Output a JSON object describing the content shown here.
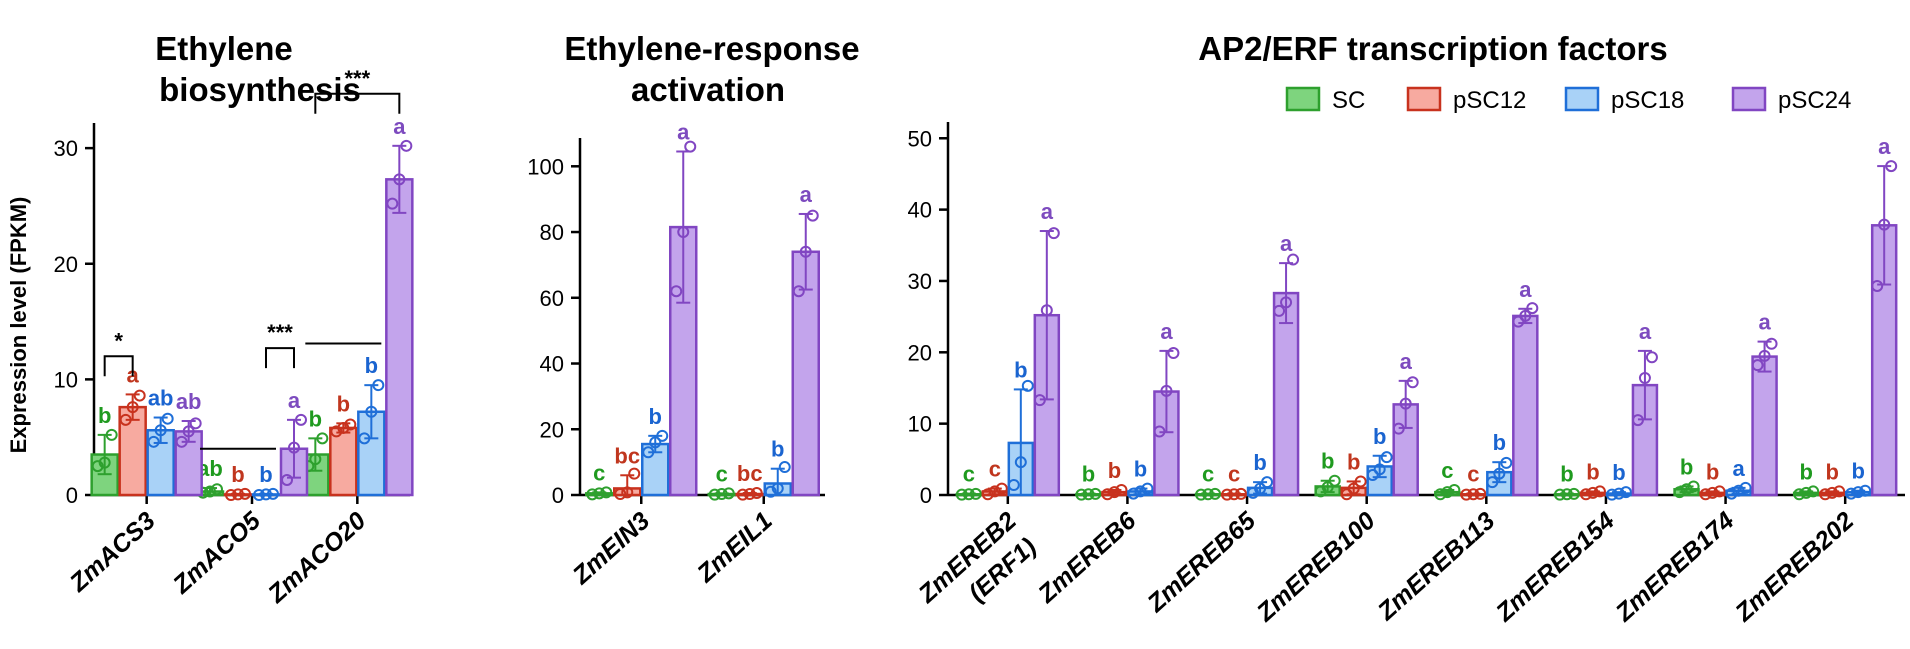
{
  "colors": {
    "SC": {
      "fill": "#7ed47e",
      "stroke": "#2ea02e",
      "text": "#1f9a1f"
    },
    "pSC12": {
      "fill": "#f7aaa0",
      "stroke": "#c8321e",
      "text": "#c0361e"
    },
    "pSC18": {
      "fill": "#a9d2f7",
      "stroke": "#1f6fd8",
      "text": "#1a64d0"
    },
    "pSC24": {
      "fill": "#c3a4ec",
      "stroke": "#8146c2",
      "text": "#7d4bbf"
    }
  },
  "legend": [
    "SC",
    "pSC12",
    "pSC18",
    "pSC24"
  ],
  "shared_ylabel": "Expression level (FPKM)",
  "chart_data": [
    {
      "type": "bar",
      "title": [
        "Ethylene",
        "biosynthesis"
      ],
      "ylim": [
        0,
        32
      ],
      "yticks": [
        "0",
        "10",
        "20",
        "30"
      ],
      "categories": [
        "ZmACS3",
        "ZmACO5",
        "ZmACO20"
      ],
      "series": [
        {
          "name": "SC",
          "values": [
            3.5,
            0.3,
            3.5
          ],
          "errors": [
            1.7,
            0.3,
            1.4
          ],
          "letters": [
            "b",
            "ab",
            "b"
          ],
          "points": [
            [
              2.5,
              2.8,
              5.2
            ],
            [
              0.2,
              0.3,
              0.5
            ],
            [
              2.5,
              3.1,
              4.9
            ]
          ]
        },
        {
          "name": "pSC12",
          "values": [
            7.6,
            0.05,
            5.8
          ],
          "errors": [
            1.1,
            0.05,
            0.4
          ],
          "letters": [
            "a",
            "b",
            "b"
          ],
          "points": [
            [
              6.5,
              7.6,
              8.6
            ],
            [
              0,
              0.05,
              0.1
            ],
            [
              5.5,
              5.8,
              6.1
            ]
          ]
        },
        {
          "name": "pSC18",
          "values": [
            5.6,
            0.05,
            7.2
          ],
          "errors": [
            1.1,
            0.05,
            2.3
          ],
          "letters": [
            "ab",
            "b",
            "b"
          ],
          "points": [
            [
              4.6,
              5.6,
              6.6
            ],
            [
              0,
              0.05,
              0.1
            ],
            [
              4.9,
              7.2,
              9.5
            ]
          ]
        },
        {
          "name": "pSC24",
          "values": [
            5.5,
            4.0,
            27.3
          ],
          "errors": [
            0.9,
            2.5,
            2.9
          ],
          "letters": [
            "ab",
            "a",
            "a"
          ],
          "points": [
            [
              4.6,
              5.5,
              6.2
            ],
            [
              1.3,
              4.1,
              6.5
            ],
            [
              25.2,
              27.3,
              30.2
            ]
          ]
        }
      ],
      "brackets": [
        {
          "cat": 0,
          "from": "SC",
          "to": "pSC12",
          "y": 12.0,
          "stars": "*"
        },
        {
          "cat": 1,
          "from": "pSC18",
          "to": "pSC24",
          "y": 12.7,
          "stars": "***"
        },
        {
          "cat": 1,
          "from": "SC",
          "to": "pSC18",
          "y": 4.0,
          "stars": ""
        },
        {
          "cat": 2,
          "from": "SC",
          "to": "pSC18",
          "y": 13.1,
          "stars": ""
        },
        {
          "cat": 2,
          "from": "SC",
          "to": "pSC24",
          "y": 34.7,
          "stars": "***"
        }
      ]
    },
    {
      "type": "bar",
      "title": [
        "Ethylene-response",
        "activation"
      ],
      "ylim": [
        0,
        108
      ],
      "yticks": [
        "0",
        "20",
        "40",
        "60",
        "80",
        "100"
      ],
      "categories": [
        "ZmEIN3",
        "ZmEIL1"
      ],
      "series": [
        {
          "name": "SC",
          "values": [
            0.5,
            0.3
          ],
          "errors": [
            0.3,
            0.2
          ],
          "letters": [
            "c",
            "c"
          ],
          "points": [
            [
              0.2,
              0.5,
              0.8
            ],
            [
              0.1,
              0.3,
              0.5
            ]
          ]
        },
        {
          "name": "pSC12",
          "values": [
            2.0,
            0.3
          ],
          "errors": [
            4.0,
            0.3
          ],
          "letters": [
            "bc",
            "bc"
          ],
          "points": [
            [
              0.3,
              0.8,
              6.5
            ],
            [
              0.1,
              0.3,
              0.6
            ]
          ]
        },
        {
          "name": "pSC18",
          "values": [
            15.5,
            3.5
          ],
          "errors": [
            2.5,
            4.5
          ],
          "letters": [
            "b",
            "b"
          ],
          "points": [
            [
              13,
              16,
              18
            ],
            [
              1,
              2,
              8.5
            ]
          ]
        },
        {
          "name": "pSC24",
          "values": [
            81.5,
            74
          ],
          "errors": [
            23,
            11.5
          ],
          "letters": [
            "a",
            "a"
          ],
          "points": [
            [
              62,
              80,
              106
            ],
            [
              62,
              74,
              85
            ]
          ]
        }
      ],
      "brackets": []
    },
    {
      "type": "bar",
      "title": [
        "AP2/ERF transcription factors"
      ],
      "ylim": [
        0,
        52
      ],
      "yticks": [
        "0",
        "10",
        "20",
        "30",
        "40",
        "50"
      ],
      "categories": [
        "ZmEREB2 (ERF1)",
        "ZmEREB6",
        "ZmEREB65",
        "ZmEREB100",
        "ZmEREB113",
        "ZmEREB154",
        "ZmEREB174",
        "ZmEREB202"
      ],
      "series": [
        {
          "name": "SC",
          "values": [
            0.1,
            0.1,
            0.1,
            1.2,
            0.4,
            0.1,
            0.8,
            0.3
          ],
          "errors": [
            0.1,
            0.1,
            0.1,
            0.8,
            0.3,
            0.1,
            0.4,
            0.2
          ],
          "letters": [
            "c",
            "b",
            "c",
            "b",
            "c",
            "b",
            "b",
            "b"
          ],
          "points": [
            [
              0.05,
              0.1,
              0.15
            ],
            [
              0.05,
              0.1,
              0.15
            ],
            [
              0.05,
              0.1,
              0.15
            ],
            [
              0.5,
              1.1,
              2.0
            ],
            [
              0.1,
              0.4,
              0.7
            ],
            [
              0.05,
              0.1,
              0.15
            ],
            [
              0.4,
              0.8,
              1.2
            ],
            [
              0.1,
              0.3,
              0.5
            ]
          ]
        },
        {
          "name": "pSC12",
          "values": [
            0.5,
            0.4,
            0.1,
            1.0,
            0.1,
            0.3,
            0.3,
            0.3
          ],
          "errors": [
            0.4,
            0.3,
            0.1,
            0.9,
            0.1,
            0.2,
            0.2,
            0.2
          ],
          "letters": [
            "c",
            "b",
            "c",
            "b",
            "c",
            "b",
            "b",
            "b"
          ],
          "points": [
            [
              0.1,
              0.5,
              0.9
            ],
            [
              0.1,
              0.4,
              0.7
            ],
            [
              0.05,
              0.1,
              0.15
            ],
            [
              0.1,
              0.9,
              1.9
            ],
            [
              0.05,
              0.1,
              0.15
            ],
            [
              0.1,
              0.3,
              0.5
            ],
            [
              0.1,
              0.3,
              0.5
            ],
            [
              0.1,
              0.3,
              0.5
            ]
          ]
        },
        {
          "name": "pSC18",
          "values": [
            7.3,
            0.5,
            1.0,
            4.0,
            3.2,
            0.2,
            0.6,
            0.4
          ],
          "errors": [
            7.5,
            0.4,
            0.8,
            1.5,
            1.4,
            0.2,
            0.4,
            0.2
          ],
          "letters": [
            "b",
            "b",
            "b",
            "b",
            "b",
            "b",
            "a",
            "b"
          ],
          "points": [
            [
              1.4,
              4.6,
              15.3
            ],
            [
              0.2,
              0.5,
              0.9
            ],
            [
              0.3,
              0.9,
              1.8
            ],
            [
              2.8,
              3.6,
              5.3
            ],
            [
              1.8,
              3.0,
              4.5
            ],
            [
              0.05,
              0.2,
              0.4
            ],
            [
              0.2,
              0.6,
              1.0
            ],
            [
              0.2,
              0.4,
              0.6
            ]
          ]
        },
        {
          "name": "pSC24",
          "values": [
            25.2,
            14.5,
            28.3,
            12.7,
            25.1,
            15.4,
            19.4,
            37.8
          ],
          "errors": [
            11.8,
            5.7,
            4.2,
            3.3,
            1.0,
            4.8,
            2.1,
            8.3
          ],
          "letters": [
            "a",
            "a",
            "a",
            "a",
            "a",
            "a",
            "a",
            "a"
          ],
          "points": [
            [
              13.3,
              25.9,
              36.7
            ],
            [
              8.9,
              14.6,
              19.9
            ],
            [
              25.8,
              27.0,
              33.0
            ],
            [
              9.3,
              12.8,
              15.8
            ],
            [
              24.3,
              25.1,
              26.2
            ],
            [
              10.5,
              16.4,
              19.3
            ],
            [
              18.2,
              19.5,
              21.2
            ],
            [
              29.3,
              37.9,
              46.1
            ]
          ]
        }
      ],
      "brackets": []
    }
  ]
}
